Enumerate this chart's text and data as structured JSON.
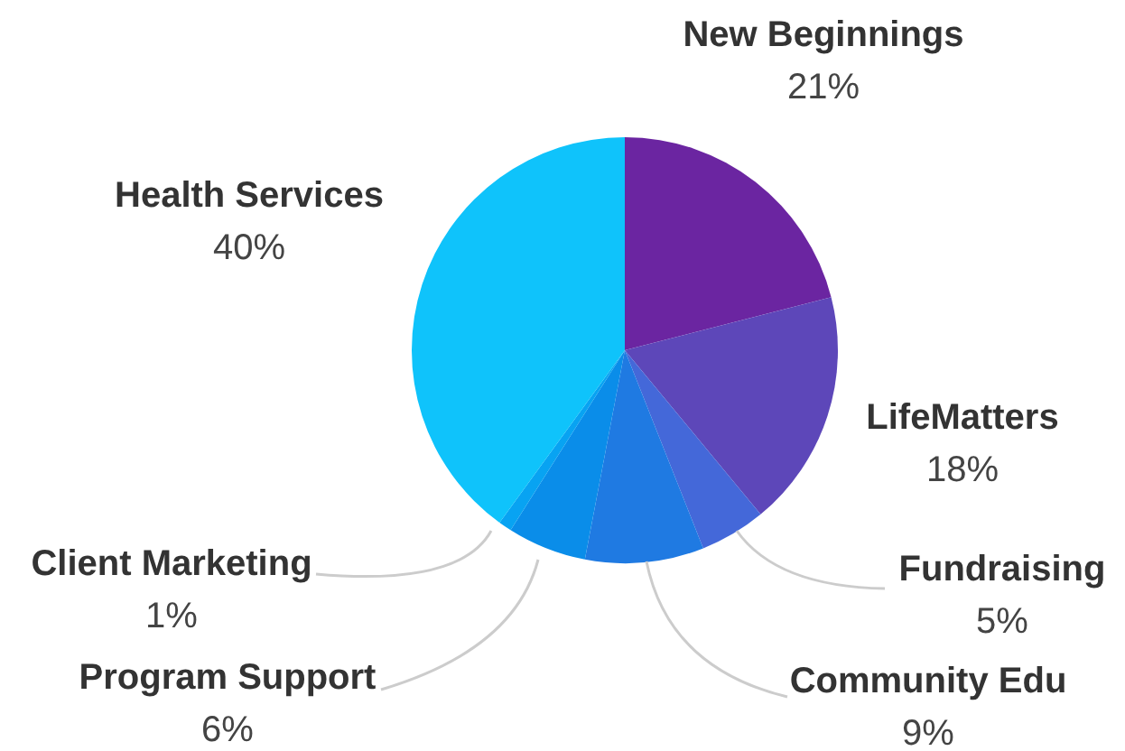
{
  "chart_data": {
    "type": "pie",
    "categories": [
      "New Beginnings",
      "LifeMatters",
      "Fundraising",
      "Community Edu",
      "Program Support",
      "Client Marketing",
      "Health Services"
    ],
    "values": [
      21,
      18,
      5,
      9,
      6,
      1,
      40
    ],
    "colors": [
      "#6b25a1",
      "#5d47b9",
      "#4468d9",
      "#1f7ae2",
      "#0a8de9",
      "#08a3f2",
      "#0fc3fb"
    ],
    "value_labels": [
      "21%",
      "18%",
      "5%",
      "9%",
      "6%",
      "1%",
      "40%"
    ]
  }
}
